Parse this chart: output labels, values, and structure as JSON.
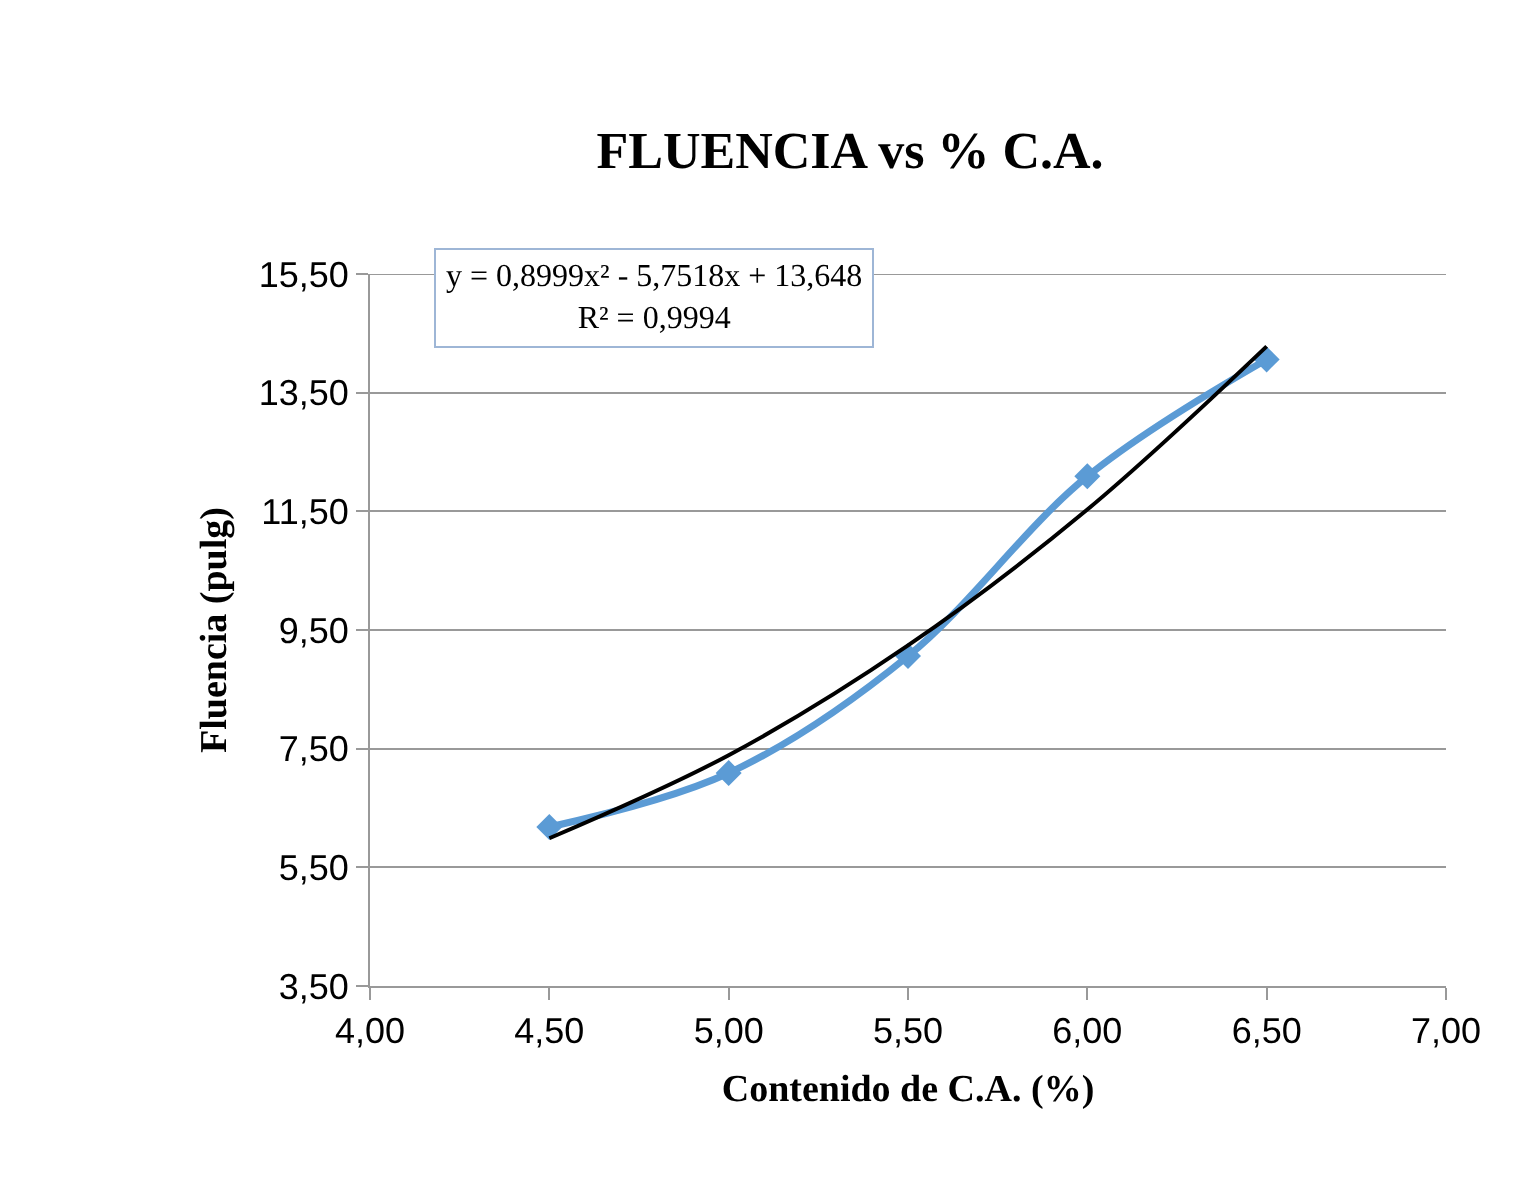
{
  "chart_data": {
    "type": "line",
    "title": "FLUENCIA vs % C.A.",
    "xlabel": "Contenido de C.A. (%)",
    "ylabel": "Fluencia (pulg)",
    "annotations": [
      "y = 0,8999x² - 5,7518x + 13,648\nR² = 0,9994"
    ],
    "x": [
      4.5,
      5.0,
      5.5,
      6.0,
      6.5
    ],
    "series": [
      {
        "color": "#5b9bd5",
        "values": [
          6.18,
          7.09,
          9.06,
          12.09,
          14.06
        ],
        "marker": "diamond"
      },
      {
        "color": "#000000",
        "values": [
          5.99,
          7.39,
          9.24,
          11.53,
          14.28
        ],
        "marker": "none"
      }
    ],
    "xlim": [
      4,
      7
    ],
    "xticks": [
      {
        "value": 4,
        "label": "4,00"
      },
      {
        "value": 4.5,
        "label": "4,50"
      },
      {
        "value": 5,
        "label": "5,00"
      },
      {
        "value": 5.5,
        "label": "5,50"
      },
      {
        "value": 6,
        "label": "6,00"
      },
      {
        "value": 6.5,
        "label": "6,50"
      },
      {
        "value": 7,
        "label": "7,00"
      }
    ],
    "ylim": [
      3.5,
      15.5
    ],
    "yticks": [
      {
        "value": 3.5,
        "label": "3,50"
      },
      {
        "value": 5.5,
        "label": "5,50"
      },
      {
        "value": 7.5,
        "label": "7,50"
      },
      {
        "value": 9.5,
        "label": "9,50"
      },
      {
        "value": 11.5,
        "label": "11,50"
      },
      {
        "value": 13.5,
        "label": "13,50"
      },
      {
        "value": 15.5,
        "label": "15,50"
      }
    ],
    "grid": "y",
    "line_style": "solid"
  }
}
